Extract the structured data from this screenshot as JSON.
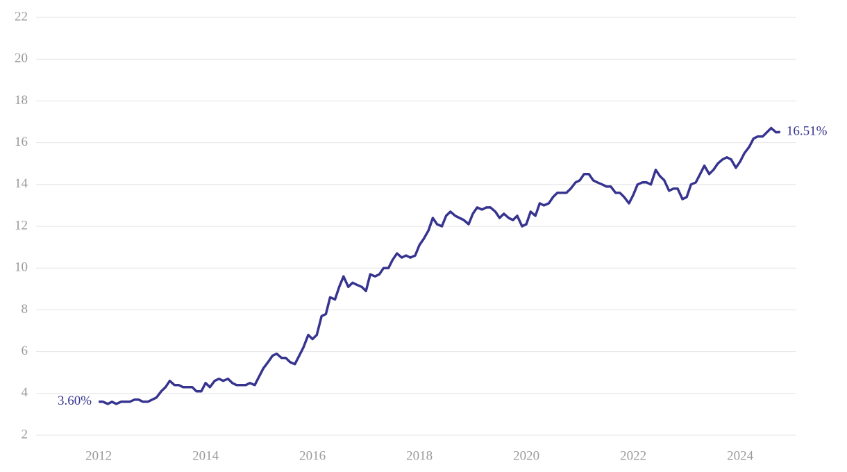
{
  "chart_data": {
    "type": "line",
    "x": [
      2012.0,
      2012.08,
      2012.17,
      2012.25,
      2012.33,
      2012.42,
      2012.5,
      2012.58,
      2012.67,
      2012.75,
      2012.83,
      2012.92,
      2013.0,
      2013.08,
      2013.17,
      2013.25,
      2013.33,
      2013.42,
      2013.5,
      2013.58,
      2013.67,
      2013.75,
      2013.83,
      2013.92,
      2014.0,
      2014.08,
      2014.17,
      2014.25,
      2014.33,
      2014.42,
      2014.5,
      2014.58,
      2014.67,
      2014.75,
      2014.83,
      2014.92,
      2015.0,
      2015.08,
      2015.17,
      2015.25,
      2015.33,
      2015.42,
      2015.5,
      2015.58,
      2015.67,
      2015.75,
      2015.83,
      2015.92,
      2016.0,
      2016.08,
      2016.17,
      2016.25,
      2016.33,
      2016.42,
      2016.5,
      2016.58,
      2016.67,
      2016.75,
      2016.83,
      2016.92,
      2017.0,
      2017.08,
      2017.17,
      2017.25,
      2017.33,
      2017.42,
      2017.5,
      2017.58,
      2017.67,
      2017.75,
      2017.83,
      2017.92,
      2018.0,
      2018.08,
      2018.17,
      2018.25,
      2018.33,
      2018.42,
      2018.5,
      2018.58,
      2018.67,
      2018.75,
      2018.83,
      2018.92,
      2019.0,
      2019.08,
      2019.17,
      2019.25,
      2019.33,
      2019.42,
      2019.5,
      2019.58,
      2019.67,
      2019.75,
      2019.83,
      2019.92,
      2020.0,
      2020.08,
      2020.17,
      2020.25,
      2020.33,
      2020.42,
      2020.5,
      2020.58,
      2020.67,
      2020.75,
      2020.83,
      2020.92,
      2021.0,
      2021.08,
      2021.17,
      2021.25,
      2021.33,
      2021.42,
      2021.5,
      2021.58,
      2021.67,
      2021.75,
      2021.83,
      2021.92,
      2022.0,
      2022.08,
      2022.17,
      2022.25,
      2022.33,
      2022.42,
      2022.5,
      2022.58,
      2022.67,
      2022.75,
      2022.83,
      2022.92,
      2023.0,
      2023.08,
      2023.17,
      2023.25,
      2023.33,
      2023.42,
      2023.5,
      2023.58,
      2023.67,
      2023.75,
      2023.83,
      2023.92,
      2024.0,
      2024.08,
      2024.17,
      2024.25,
      2024.33,
      2024.42,
      2024.5,
      2024.58,
      2024.67,
      2024.75
    ],
    "series": [
      {
        "color": "#36348f",
        "values": [
          3.6,
          3.6,
          3.5,
          3.6,
          3.5,
          3.6,
          3.6,
          3.6,
          3.7,
          3.7,
          3.6,
          3.6,
          3.7,
          3.8,
          4.1,
          4.3,
          4.6,
          4.4,
          4.4,
          4.3,
          4.3,
          4.3,
          4.1,
          4.1,
          4.5,
          4.3,
          4.6,
          4.7,
          4.6,
          4.7,
          4.5,
          4.4,
          4.4,
          4.4,
          4.5,
          4.4,
          4.8,
          5.2,
          5.5,
          5.8,
          5.9,
          5.7,
          5.7,
          5.5,
          5.4,
          5.8,
          6.2,
          6.8,
          6.6,
          6.8,
          7.7,
          7.8,
          8.6,
          8.5,
          9.1,
          9.6,
          9.1,
          9.3,
          9.2,
          9.1,
          8.9,
          9.7,
          9.6,
          9.7,
          10.0,
          10.0,
          10.4,
          10.7,
          10.5,
          10.6,
          10.5,
          10.6,
          11.1,
          11.4,
          11.8,
          12.4,
          12.1,
          12.0,
          12.5,
          12.7,
          12.5,
          12.4,
          12.3,
          12.1,
          12.6,
          12.9,
          12.8,
          12.9,
          12.9,
          12.7,
          12.4,
          12.6,
          12.4,
          12.3,
          12.5,
          12.0,
          12.1,
          12.7,
          12.5,
          13.1,
          13.0,
          13.1,
          13.4,
          13.6,
          13.6,
          13.6,
          13.8,
          14.1,
          14.2,
          14.5,
          14.5,
          14.2,
          14.1,
          14.0,
          13.9,
          13.9,
          13.6,
          13.6,
          13.4,
          13.1,
          13.5,
          14.0,
          14.1,
          14.1,
          14.0,
          14.7,
          14.4,
          14.2,
          13.7,
          13.8,
          13.8,
          13.3,
          13.4,
          14.0,
          14.1,
          14.5,
          14.9,
          14.5,
          14.7,
          15.0,
          15.2,
          15.3,
          15.2,
          14.8,
          15.1,
          15.5,
          15.8,
          16.2,
          16.3,
          16.3,
          16.5,
          16.7,
          16.5,
          16.51
        ],
        "value_labels": [
          "3.60%",
          null,
          null,
          null,
          null,
          null,
          null,
          null,
          null,
          null,
          null,
          null,
          null,
          null,
          null,
          null,
          null,
          null,
          null,
          null,
          null,
          null,
          null,
          null,
          null,
          null,
          null,
          null,
          null,
          null,
          null,
          null,
          null,
          null,
          null,
          null,
          null,
          null,
          null,
          null,
          null,
          null,
          null,
          null,
          null,
          null,
          null,
          null,
          null,
          null,
          null,
          null,
          null,
          null,
          null,
          null,
          null,
          null,
          null,
          null,
          null,
          null,
          null,
          null,
          null,
          null,
          null,
          null,
          null,
          null,
          null,
          null,
          null,
          null,
          null,
          null,
          null,
          null,
          null,
          null,
          null,
          null,
          null,
          null,
          null,
          null,
          null,
          null,
          null,
          null,
          null,
          null,
          null,
          null,
          null,
          null,
          null,
          null,
          null,
          null,
          null,
          null,
          null,
          null,
          null,
          null,
          null,
          null,
          null,
          null,
          null,
          null,
          null,
          null,
          null,
          null,
          null,
          null,
          null,
          null,
          null,
          null,
          null,
          null,
          null,
          null,
          null,
          null,
          null,
          null,
          null,
          null,
          null,
          null,
          null,
          null,
          null,
          null,
          null,
          null,
          null,
          null,
          null,
          null,
          null,
          null,
          null,
          null,
          null,
          null,
          null,
          null,
          null,
          "16.51%"
        ]
      }
    ],
    "xlim": [
      2010.83,
      2025.05
    ],
    "xticks": [
      2012,
      2014,
      2016,
      2018,
      2020,
      2022,
      2024
    ],
    "ylim": [
      2,
      22
    ],
    "yticks": [
      2,
      4,
      6,
      8,
      10,
      12,
      14,
      16,
      18,
      20,
      22
    ],
    "grid": true
  }
}
